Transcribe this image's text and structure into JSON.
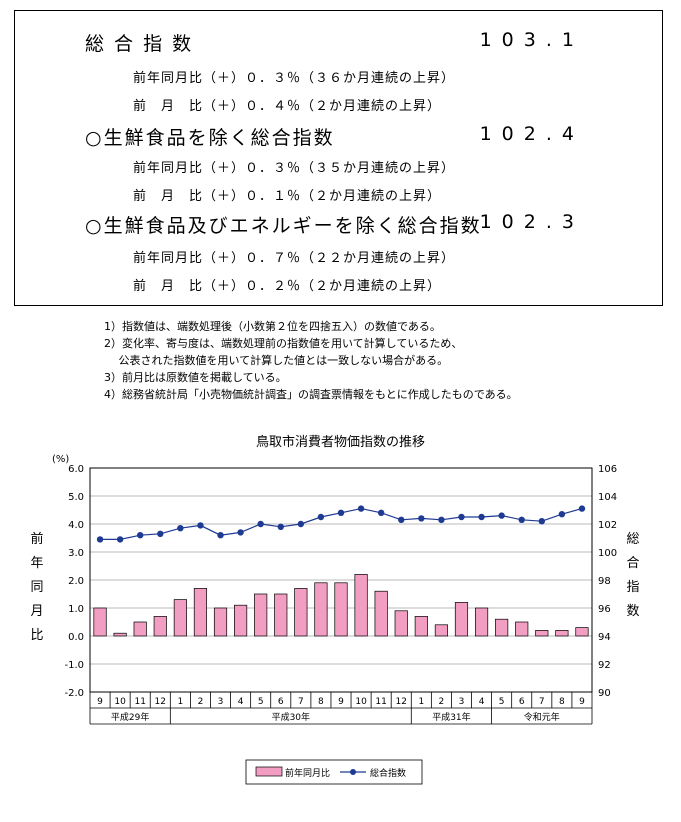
{
  "summary": {
    "rows": [
      {
        "title": "総 合 指 数",
        "value": "103.1",
        "yoy": "前年同月比（＋）０．３％（３６か月連続の上昇）",
        "mom": "前　月　比（＋）０．４％（２か月連続の上昇）"
      },
      {
        "title": "○生鮮食品を除く総合指数",
        "value": "102.4",
        "yoy": "前年同月比（＋）０．３％（３５か月連続の上昇）",
        "mom": "前　月　比（＋）０．１％（２か月連続の上昇）"
      },
      {
        "title": "○生鮮食品及びエネルギーを除く総合指数",
        "value": "102.3",
        "yoy": "前年同月比（＋）０．７％（２２か月連続の上昇）",
        "mom": "前　月　比（＋）０．２％（２か月連続の上昇）"
      }
    ]
  },
  "notes": [
    "1）指数値は、端数処理後（小数第２位を四捨五入）の数値である。",
    "2）変化率、寄与度は、端数処理前の指数値を用いて計算しているため、",
    "　 公表された指数値を用いて計算した値とは一致しない場合がある。",
    "3）前月比は原数値を掲載している。",
    "4）総務省統計局「小売物価統計調査」の調査票情報をもとに作成したものである。"
  ],
  "chart_data": {
    "type": "bar",
    "title": "鳥取市消費者物価指数の推移",
    "unit_left": "(%)",
    "ylabel_left": "前年同月比",
    "ylabel_right": "総合指数",
    "ylim_left": [
      -2.0,
      6.0
    ],
    "ylim_right": [
      90,
      106
    ],
    "yticks_left": [
      "6.0",
      "5.0",
      "4.0",
      "3.0",
      "2.0",
      "1.0",
      "0.0",
      "-1.0",
      "-2.0"
    ],
    "yticks_right": [
      "106",
      "104",
      "102",
      "100",
      "98",
      "96",
      "94",
      "92",
      "90"
    ],
    "categories": [
      "9",
      "10",
      "11",
      "12",
      "1",
      "2",
      "3",
      "4",
      "5",
      "6",
      "7",
      "8",
      "9",
      "10",
      "11",
      "12",
      "1",
      "2",
      "3",
      "4",
      "5",
      "6",
      "7",
      "8",
      "9"
    ],
    "year_groups": [
      {
        "label": "平成29年",
        "start": 0,
        "end": 3
      },
      {
        "label": "平成30年",
        "start": 4,
        "end": 15
      },
      {
        "label": "平成31年",
        "start": 16,
        "end": 19
      },
      {
        "label": "令和元年",
        "start": 20,
        "end": 24
      }
    ],
    "series": [
      {
        "name": "前年同月比",
        "type": "bar",
        "axis": "left",
        "color": "#f19ec2",
        "values": [
          1.0,
          0.1,
          0.5,
          0.7,
          1.3,
          1.7,
          1.0,
          1.1,
          1.5,
          1.5,
          1.7,
          1.9,
          1.9,
          2.2,
          1.6,
          0.9,
          0.7,
          0.4,
          1.2,
          1.0,
          0.6,
          0.5,
          0.2,
          0.2,
          0.3
        ]
      },
      {
        "name": "総合指数",
        "type": "line",
        "axis": "right",
        "color": "#1f3a93",
        "values": [
          100.9,
          100.9,
          101.2,
          101.3,
          101.7,
          101.9,
          101.2,
          101.4,
          102.0,
          101.8,
          102.0,
          102.5,
          102.8,
          103.1,
          102.8,
          102.3,
          102.4,
          102.3,
          102.5,
          102.5,
          102.6,
          102.3,
          102.2,
          102.7,
          103.1
        ]
      }
    ],
    "legend_position": "bottom"
  },
  "colors": {
    "bar": "#f19ec2",
    "line": "#1f3a93"
  }
}
